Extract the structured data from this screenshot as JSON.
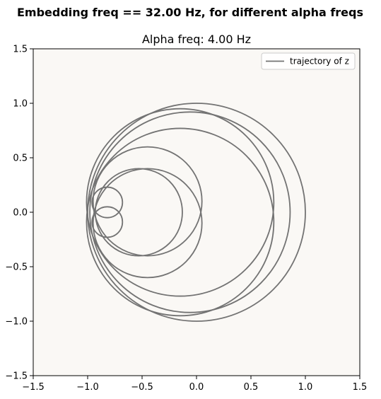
{
  "figure": {
    "suptitle": "Embedding freq == 32.00 Hz, for different alpha freqs"
  },
  "chart_data": {
    "type": "line",
    "title": "Alpha freq: 4.00 Hz",
    "xlabel": "",
    "ylabel": "",
    "xlim": [
      -1.5,
      1.5
    ],
    "ylim": [
      -1.5,
      1.5
    ],
    "xticks": [
      -1.5,
      -1.0,
      -0.5,
      0.0,
      0.5,
      1.0,
      1.5
    ],
    "yticks": [
      -1.5,
      -1.0,
      -0.5,
      0.0,
      0.5,
      1.0,
      1.5
    ],
    "xtick_labels": [
      "−1.5",
      "−1.0",
      "−0.5",
      "0.0",
      "0.5",
      "1.0",
      "1.5"
    ],
    "ytick_labels": [
      "−1.5",
      "−1.0",
      "−0.5",
      "0.0",
      "0.5",
      "1.0",
      "1.5"
    ],
    "grid": false,
    "legend": {
      "position": "top-right",
      "entries": [
        "trajectory of z"
      ]
    },
    "series": [
      {
        "name": "trajectory of z",
        "color": "#737373",
        "description_of_shape": "nested circles tangent at (-1, 0)",
        "circles": [
          {
            "center": [
              -0.82,
              0.09
            ],
            "radius": 0.14
          },
          {
            "center": [
              -0.82,
              -0.09
            ],
            "radius": 0.14
          },
          {
            "center": [
              -0.53,
              0.0
            ],
            "radius": 0.4
          },
          {
            "center": [
              -0.45,
              0.1
            ],
            "radius": 0.5
          },
          {
            "center": [
              -0.45,
              -0.1
            ],
            "radius": 0.5
          },
          {
            "center": [
              -0.15,
              0.09
            ],
            "radius": 0.86
          },
          {
            "center": [
              -0.15,
              -0.09
            ],
            "radius": 0.86
          },
          {
            "center": [
              -0.06,
              0.0
            ],
            "radius": 0.92
          },
          {
            "center": [
              0.0,
              0.0
            ],
            "radius": 1.0
          }
        ]
      }
    ],
    "plot_background": "#faf8f5"
  }
}
